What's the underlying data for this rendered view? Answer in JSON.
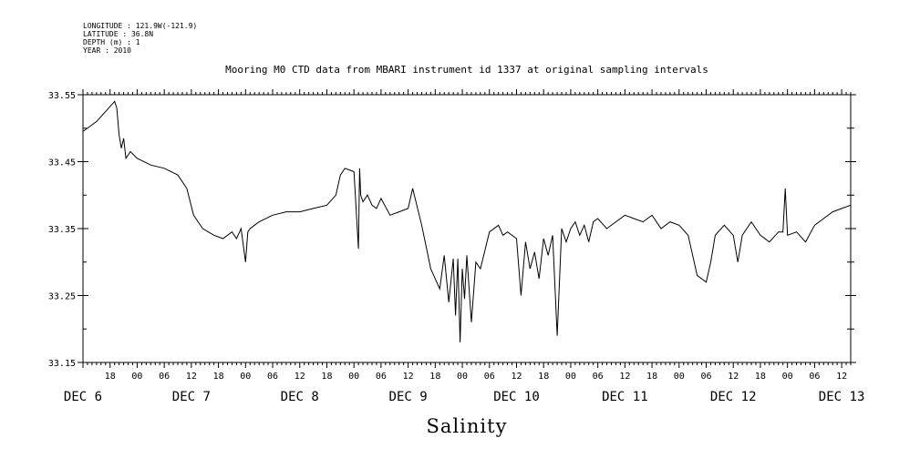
{
  "header": {
    "meta_lines": [
      "LONGITUDE : 121.9W(-121.9)",
      "LATITUDE : 36.8N",
      "DEPTH (m) : 1",
      "YEAR : 2010"
    ],
    "title": "Mooring M0 CTD data from MBARI instrument id 1337 at original sampling intervals"
  },
  "chart_data": {
    "type": "line",
    "title": "Mooring M0 CTD data from MBARI instrument id 1337 at original sampling intervals",
    "xlabel": "Salinity",
    "ylabel": "",
    "ylim": [
      33.15,
      33.55
    ],
    "yticks": [
      "33.55",
      "33.45",
      "33.35",
      "33.25",
      "33.15"
    ],
    "ytick_values": [
      33.55,
      33.45,
      33.35,
      33.25,
      33.15
    ],
    "xlim": [
      "2010-12-06 12:00",
      "2010-12-13 14:00"
    ],
    "xtick_labels": [
      {
        "t": "2010-12-06 18:00",
        "label": "18"
      },
      {
        "t": "2010-12-07 00:00",
        "label": "00"
      },
      {
        "t": "2010-12-07 06:00",
        "label": "06"
      },
      {
        "t": "2010-12-07 12:00",
        "label": "12"
      },
      {
        "t": "2010-12-07 18:00",
        "label": "18"
      },
      {
        "t": "2010-12-08 00:00",
        "label": "00"
      },
      {
        "t": "2010-12-08 06:00",
        "label": "06"
      },
      {
        "t": "2010-12-08 12:00",
        "label": "12"
      },
      {
        "t": "2010-12-08 18:00",
        "label": "18"
      },
      {
        "t": "2010-12-09 00:00",
        "label": "00"
      },
      {
        "t": "2010-12-09 06:00",
        "label": "06"
      },
      {
        "t": "2010-12-09 12:00",
        "label": "12"
      },
      {
        "t": "2010-12-09 18:00",
        "label": "18"
      },
      {
        "t": "2010-12-10 00:00",
        "label": "00"
      },
      {
        "t": "2010-12-10 06:00",
        "label": "06"
      },
      {
        "t": "2010-12-10 12:00",
        "label": "12"
      },
      {
        "t": "2010-12-10 18:00",
        "label": "18"
      },
      {
        "t": "2010-12-11 00:00",
        "label": "00"
      },
      {
        "t": "2010-12-11 06:00",
        "label": "06"
      },
      {
        "t": "2010-12-11 12:00",
        "label": "12"
      },
      {
        "t": "2010-12-11 18:00",
        "label": "18"
      },
      {
        "t": "2010-12-12 00:00",
        "label": "00"
      },
      {
        "t": "2010-12-12 06:00",
        "label": "06"
      },
      {
        "t": "2010-12-12 12:00",
        "label": "12"
      },
      {
        "t": "2010-12-12 18:00",
        "label": "18"
      },
      {
        "t": "2010-12-13 00:00",
        "label": "00"
      },
      {
        "t": "2010-12-13 06:00",
        "label": "06"
      },
      {
        "t": "2010-12-13 12:00",
        "label": "12"
      }
    ],
    "date_labels": [
      {
        "t": "2010-12-06 12:00",
        "label": "DEC  6"
      },
      {
        "t": "2010-12-07 12:00",
        "label": "DEC  7"
      },
      {
        "t": "2010-12-08 12:00",
        "label": "DEC  8"
      },
      {
        "t": "2010-12-09 12:00",
        "label": "DEC  9"
      },
      {
        "t": "2010-12-10 12:00",
        "label": "DEC 10"
      },
      {
        "t": "2010-12-11 12:00",
        "label": "DEC 11"
      },
      {
        "t": "2010-12-12 12:00",
        "label": "DEC 12"
      },
      {
        "t": "2010-12-13 12:00",
        "label": "DEC 13"
      }
    ],
    "grid": false,
    "line_color": "#000000",
    "series": [
      {
        "x": [
          "2010-12-06 12:00",
          "2010-12-06 15:00",
          "2010-12-06 17:00",
          "2010-12-06 19:00",
          "2010-12-06 19:30",
          "2010-12-06 20:00",
          "2010-12-06 20:30",
          "2010-12-06 21:00",
          "2010-12-06 21:30",
          "2010-12-06 22:30",
          "2010-12-07 00:00",
          "2010-12-07 03:00",
          "2010-12-07 06:00",
          "2010-12-07 09:00",
          "2010-12-07 11:00",
          "2010-12-07 12:30",
          "2010-12-07 13:00",
          "2010-12-07 14:30",
          "2010-12-07 17:00",
          "2010-12-07 19:00",
          "2010-12-07 21:00",
          "2010-12-07 22:00",
          "2010-12-07 23:00",
          "2010-12-08 00:00",
          "2010-12-08 00:30",
          "2010-12-08 01:00",
          "2010-12-08 03:00",
          "2010-12-08 06:00",
          "2010-12-08 09:00",
          "2010-12-08 12:00",
          "2010-12-08 15:00",
          "2010-12-08 18:00",
          "2010-12-08 20:00",
          "2010-12-08 21:00",
          "2010-12-08 22:00",
          "2010-12-09 00:00",
          "2010-12-09 01:00",
          "2010-12-09 01:15",
          "2010-12-09 01:30",
          "2010-12-09 02:00",
          "2010-12-09 03:00",
          "2010-12-09 04:00",
          "2010-12-09 05:00",
          "2010-12-09 06:00",
          "2010-12-09 08:00",
          "2010-12-09 10:00",
          "2010-12-09 12:00",
          "2010-12-09 13:00",
          "2010-12-09 15:00",
          "2010-12-09 17:00",
          "2010-12-09 19:00",
          "2010-12-09 20:00",
          "2010-12-09 21:00",
          "2010-12-09 22:00",
          "2010-12-09 22:30",
          "2010-12-09 23:00",
          "2010-12-09 23:30",
          "2010-12-10 00:00",
          "2010-12-10 00:30",
          "2010-12-10 01:00",
          "2010-12-10 02:00",
          "2010-12-10 03:00",
          "2010-12-10 04:00",
          "2010-12-10 06:00",
          "2010-12-10 08:00",
          "2010-12-10 09:00",
          "2010-12-10 10:00",
          "2010-12-10 12:00",
          "2010-12-10 13:00",
          "2010-12-10 14:00",
          "2010-12-10 15:00",
          "2010-12-10 16:00",
          "2010-12-10 17:00",
          "2010-12-10 18:00",
          "2010-12-10 19:00",
          "2010-12-10 20:00",
          "2010-12-10 21:00",
          "2010-12-10 22:00",
          "2010-12-10 23:00",
          "2010-12-11 00:00",
          "2010-12-11 01:00",
          "2010-12-11 02:00",
          "2010-12-11 03:00",
          "2010-12-11 04:00",
          "2010-12-11 05:00",
          "2010-12-11 06:00",
          "2010-12-11 08:00",
          "2010-12-11 10:00",
          "2010-12-11 12:00",
          "2010-12-11 14:00",
          "2010-12-11 16:00",
          "2010-12-11 18:00",
          "2010-12-11 20:00",
          "2010-12-11 22:00",
          "2010-12-12 00:00",
          "2010-12-12 02:00",
          "2010-12-12 04:00",
          "2010-12-12 06:00",
          "2010-12-12 07:00",
          "2010-12-12 08:00",
          "2010-12-12 10:00",
          "2010-12-12 12:00",
          "2010-12-12 13:00",
          "2010-12-12 14:00",
          "2010-12-12 16:00",
          "2010-12-12 18:00",
          "2010-12-12 20:00",
          "2010-12-12 22:00",
          "2010-12-12 23:00",
          "2010-12-12 23:30",
          "2010-12-13 00:00",
          "2010-12-13 02:00",
          "2010-12-13 04:00",
          "2010-12-13 06:00",
          "2010-12-13 08:00",
          "2010-12-13 10:00",
          "2010-12-13 12:00",
          "2010-12-13 14:00"
        ],
        "y": [
          33.495,
          33.51,
          33.525,
          33.54,
          33.53,
          33.49,
          33.47,
          33.485,
          33.455,
          33.465,
          33.455,
          33.445,
          33.44,
          33.43,
          33.41,
          33.37,
          33.365,
          33.35,
          33.34,
          33.335,
          33.345,
          33.335,
          33.35,
          33.3,
          33.345,
          33.35,
          33.36,
          33.37,
          33.375,
          33.375,
          33.38,
          33.385,
          33.4,
          33.43,
          33.44,
          33.435,
          33.32,
          33.44,
          33.4,
          33.39,
          33.4,
          33.385,
          33.38,
          33.395,
          33.37,
          33.375,
          33.38,
          33.41,
          33.355,
          33.29,
          33.26,
          33.31,
          33.24,
          33.305,
          33.22,
          33.305,
          33.18,
          33.29,
          33.245,
          33.31,
          33.21,
          33.3,
          33.29,
          33.345,
          33.355,
          33.34,
          33.345,
          33.335,
          33.25,
          33.33,
          33.29,
          33.315,
          33.275,
          33.335,
          33.31,
          33.34,
          33.19,
          33.35,
          33.33,
          33.35,
          33.36,
          33.34,
          33.355,
          33.33,
          33.36,
          33.365,
          33.35,
          33.36,
          33.37,
          33.365,
          33.36,
          33.37,
          33.35,
          33.36,
          33.355,
          33.34,
          33.28,
          33.27,
          33.3,
          33.34,
          33.355,
          33.34,
          33.3,
          33.34,
          33.36,
          33.34,
          33.33,
          33.345,
          33.345,
          33.41,
          33.34,
          33.345,
          33.33,
          33.355,
          33.365,
          33.375,
          33.38,
          33.385
        ]
      }
    ]
  }
}
